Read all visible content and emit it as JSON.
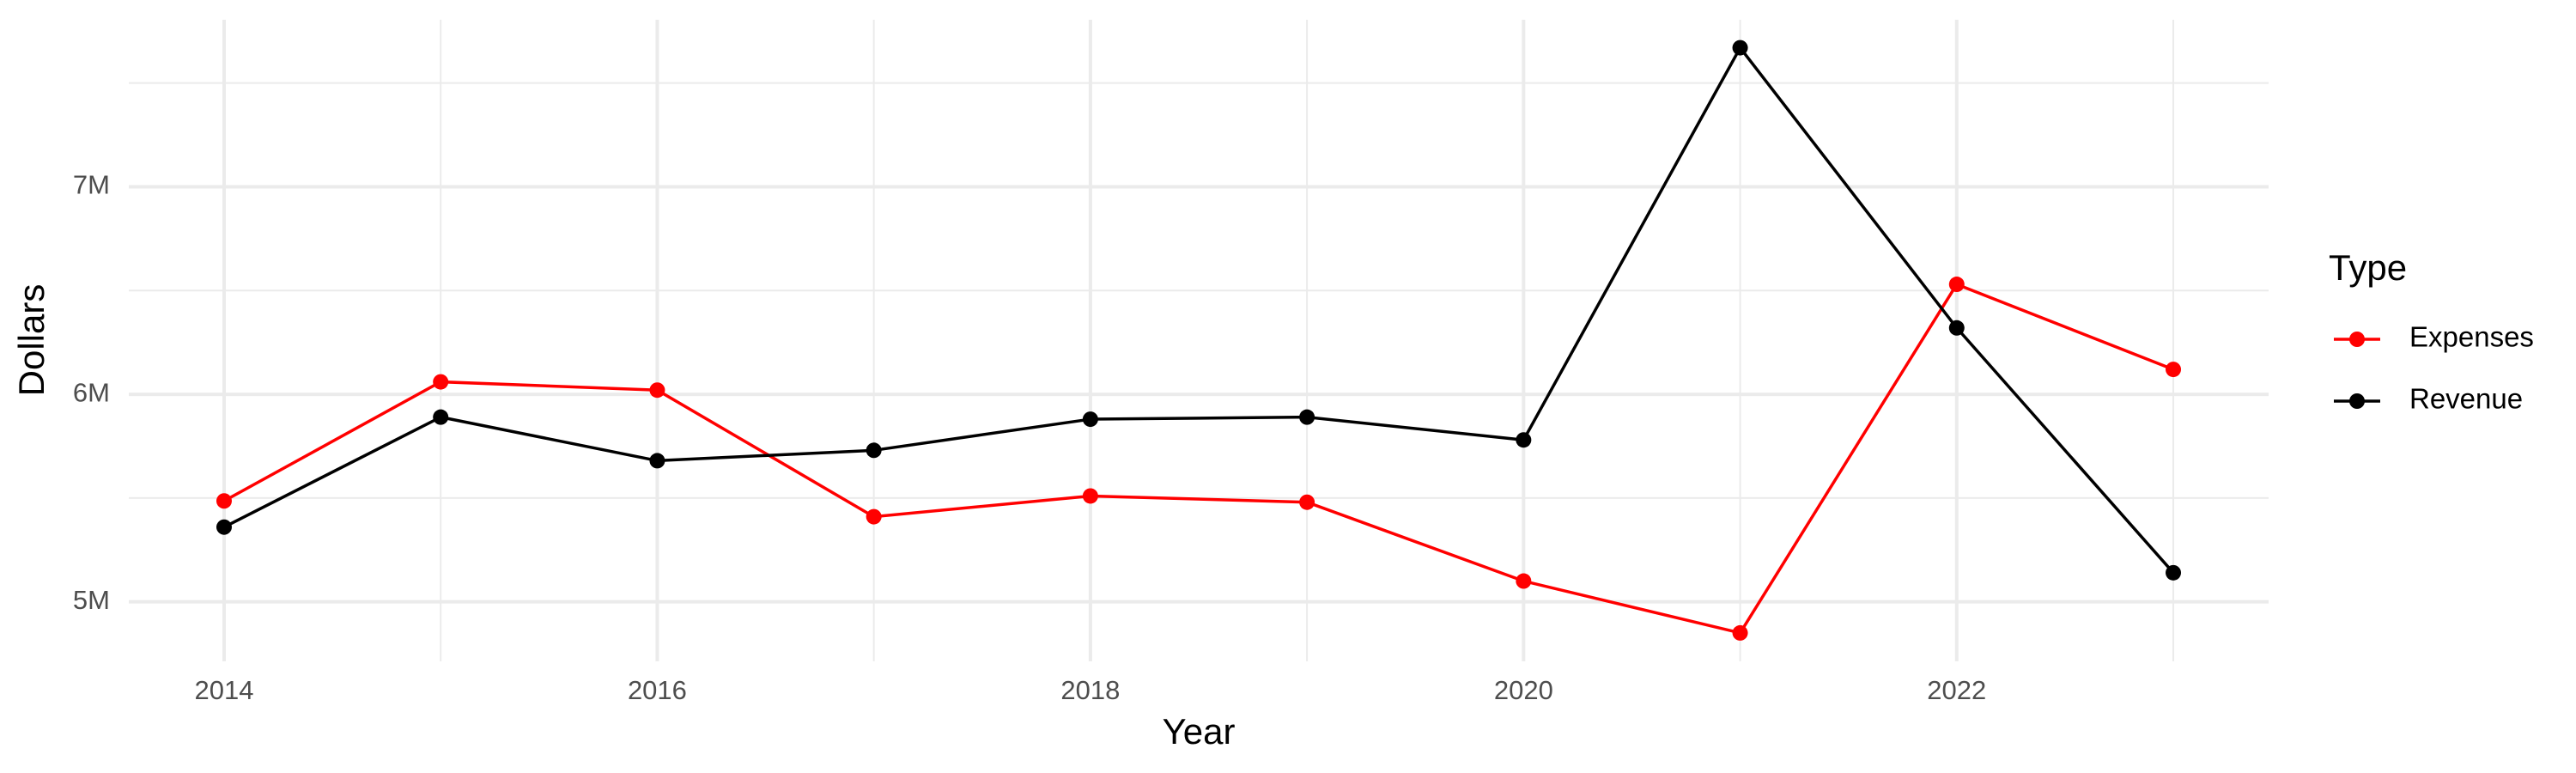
{
  "chart_data": {
    "type": "line",
    "x_label": "Year",
    "y_label": "Dollars",
    "legend_title": "Type",
    "x": [
      2014,
      2015,
      2016,
      2017,
      2018,
      2019,
      2020,
      2021,
      2022,
      2023
    ],
    "series": [
      {
        "name": "Expenses",
        "color": "#ff0000",
        "values": [
          5486000,
          6060000,
          6020000,
          5410000,
          5510000,
          5480000,
          5100000,
          4850000,
          6530000,
          6120000
        ]
      },
      {
        "name": "Revenue",
        "color": "#000000",
        "values": [
          5360000,
          5890000,
          5680000,
          5730000,
          5880000,
          5890000,
          5780000,
          7670000,
          6320000,
          5140000
        ]
      }
    ],
    "xlim": [
      2013.56,
      2023.44
    ],
    "xticks": [
      2014,
      2016,
      2018,
      2020,
      2022
    ],
    "xminor": [
      2015,
      2017,
      2019,
      2021,
      2023
    ],
    "ylim": [
      4713000,
      7805000
    ],
    "yticks": [
      {
        "value": 5000000,
        "label": "5M"
      },
      {
        "value": 6000000,
        "label": "6M"
      },
      {
        "value": 7000000,
        "label": "7M"
      }
    ],
    "yminor": [
      5500000,
      6500000,
      7500000
    ],
    "grid": true,
    "legend": "right"
  }
}
